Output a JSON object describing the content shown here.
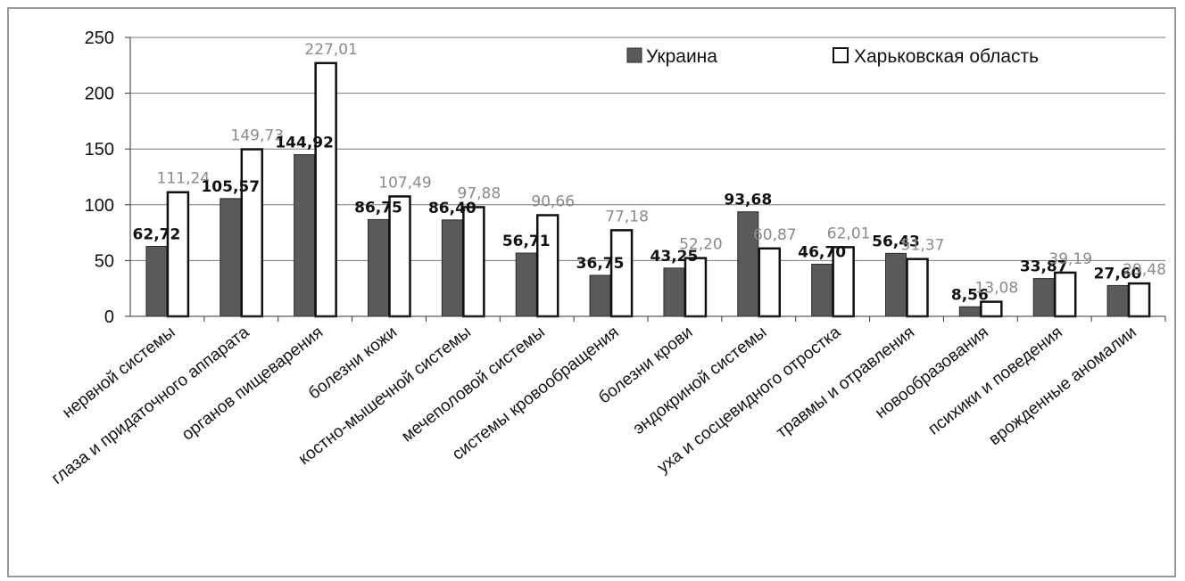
{
  "chart_data": {
    "type": "bar",
    "categories": [
      "нервной системы",
      "глаза и придаточного аппарата",
      "органов пищеварения",
      "болезни кожи",
      "костно-мышечной системы",
      "мечеполовой системы",
      "системы кровообращения",
      "болезни крови",
      "эндокриной системы",
      "уха и сосцевидного отростка",
      "травмы и отравления",
      "новообразования",
      "психики и поведения",
      "врожденные аномалии"
    ],
    "series": [
      {
        "name": "Украина",
        "values": [
          62.72,
          105.57,
          144.92,
          86.75,
          86.4,
          56.71,
          36.75,
          43.25,
          93.68,
          46.7,
          56.43,
          8.56,
          33.87,
          27.6
        ],
        "labels": [
          "62,72",
          "105,57",
          "144,92",
          "86,75",
          "86,40",
          "56,71",
          "36,75",
          "43,25",
          "93,68",
          "46,70",
          "56,43",
          "8,56",
          "33,87",
          "27,60"
        ],
        "color": "#5a5a5a"
      },
      {
        "name": "Харьковская область",
        "values": [
          111.24,
          149.73,
          227.01,
          107.49,
          97.88,
          90.66,
          77.18,
          52.2,
          60.87,
          62.01,
          51.37,
          13.08,
          39.19,
          29.48
        ],
        "labels": [
          "111,24",
          "149,73",
          "227,01",
          "107,49",
          "97,88",
          "90,66",
          "77,18",
          "52,20",
          "60,87",
          "62,01",
          "51,37",
          "13,08",
          "39,19",
          "29,48"
        ],
        "color": "#ffffff"
      }
    ],
    "yticks": [
      0,
      50,
      100,
      150,
      200,
      250
    ],
    "ylim": [
      0,
      250
    ],
    "grid": true,
    "legend": "top-right",
    "title": "",
    "xlabel": "",
    "ylabel": ""
  }
}
